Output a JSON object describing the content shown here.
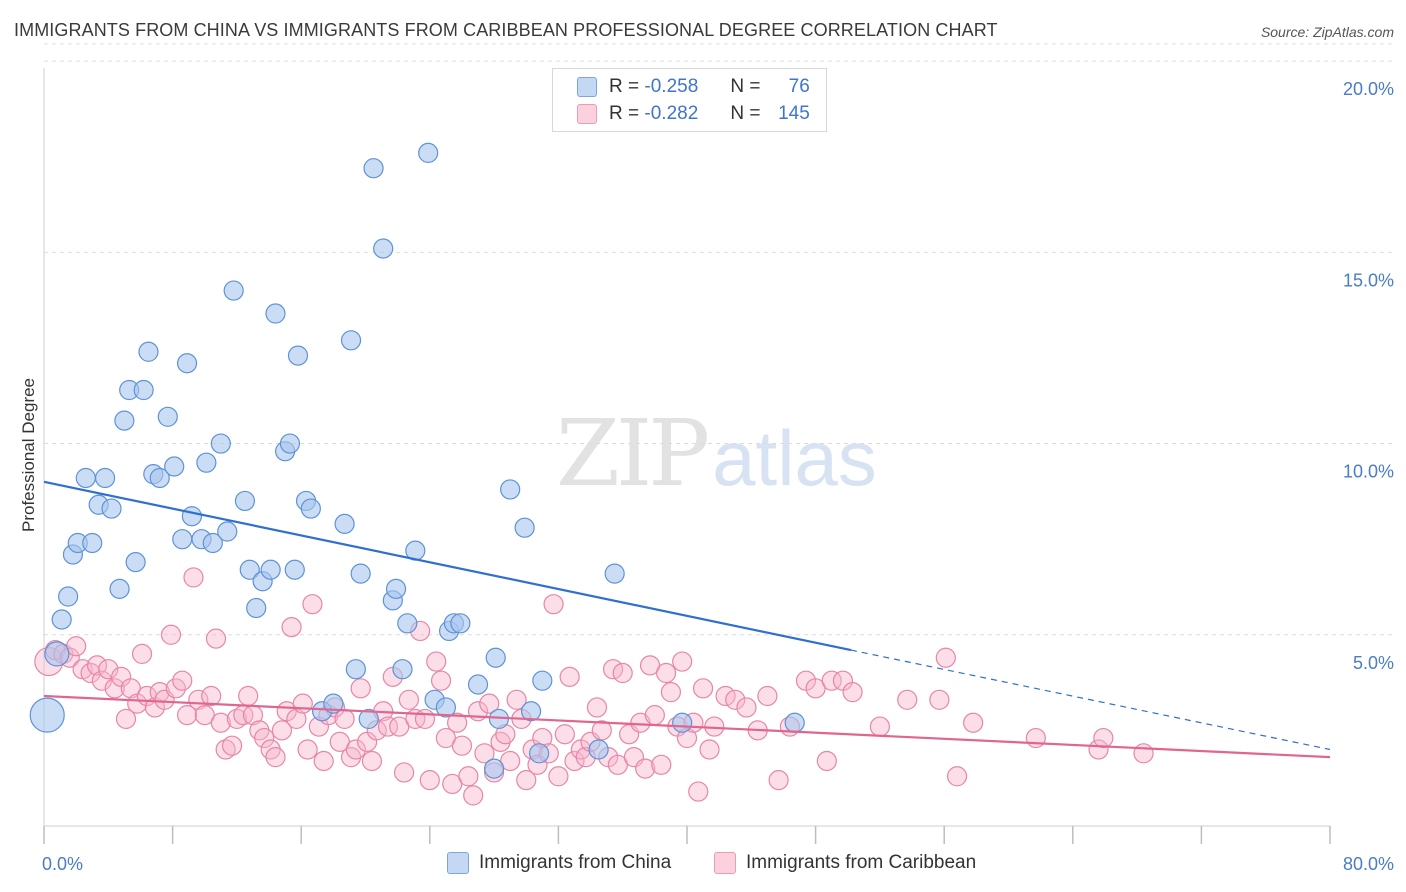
{
  "header": {
    "title": "IMMIGRANTS FROM CHINA VS IMMIGRANTS FROM CARIBBEAN PROFESSIONAL DEGREE CORRELATION CHART",
    "source": "Source: ZipAtlas.com"
  },
  "watermark": {
    "zip": "ZIP",
    "atlas": "atlas"
  },
  "legend": {
    "r_label": "R =",
    "n_label": "N =",
    "rows": [
      {
        "r": "-0.258",
        "n": "76",
        "color": "#a9c6ef"
      },
      {
        "r": "-0.282",
        "n": "145",
        "color": "#f7b6cb"
      }
    ]
  },
  "bottom_legend": [
    {
      "label": "Immigrants from China",
      "color": "#a9c6ef"
    },
    {
      "label": "Immigrants from Caribbean",
      "color": "#f7b6cb"
    }
  ],
  "colors": {
    "china_fill": "#a9c6ef",
    "china_stroke": "#5e93d6",
    "china_line": "#2f6fd0",
    "carib_fill": "#f7b6cb",
    "carib_stroke": "#e886a7",
    "carib_line": "#e0668f",
    "grid": "#dcdcdc",
    "tick_text": "#4a7cc7"
  },
  "chart_data": {
    "type": "scatter",
    "title": "IMMIGRANTS FROM CHINA VS IMMIGRANTS FROM CARIBBEAN PROFESSIONAL DEGREE CORRELATION CHART",
    "xlabel": "",
    "ylabel": "Professional Degree",
    "xlim": [
      0,
      80
    ],
    "ylim": [
      0,
      20.5
    ],
    "x_tick_labels": [
      "0.0%",
      "80.0%"
    ],
    "y_ticks": [
      5,
      10,
      15,
      20
    ],
    "y_tick_labels": [
      "5.0%",
      "10.0%",
      "15.0%",
      "20.0%"
    ],
    "grid": true,
    "legend_position": "top-center",
    "series": [
      {
        "name": "Immigrants from China",
        "r": -0.258,
        "n": 76,
        "trend": {
          "x0": 0,
          "y0": 9.0,
          "x1": 50.2,
          "y1": 4.6,
          "dashed_to_x": 80,
          "dashed_to_y": 2.0
        },
        "points": [
          [
            0.2,
            2.9
          ],
          [
            0.8,
            4.5
          ],
          [
            1.1,
            5.4
          ],
          [
            1.5,
            6.0
          ],
          [
            1.8,
            7.1
          ],
          [
            2.1,
            7.4
          ],
          [
            2.6,
            9.1
          ],
          [
            3.0,
            7.4
          ],
          [
            3.4,
            8.4
          ],
          [
            3.8,
            9.1
          ],
          [
            4.2,
            8.3
          ],
          [
            4.7,
            6.2
          ],
          [
            5.0,
            10.6
          ],
          [
            5.3,
            11.4
          ],
          [
            5.7,
            6.9
          ],
          [
            6.2,
            11.4
          ],
          [
            6.5,
            12.4
          ],
          [
            6.8,
            9.2
          ],
          [
            7.2,
            9.1
          ],
          [
            7.7,
            10.7
          ],
          [
            8.1,
            9.4
          ],
          [
            8.6,
            7.5
          ],
          [
            8.9,
            12.1
          ],
          [
            9.2,
            8.1
          ],
          [
            9.8,
            7.5
          ],
          [
            10.1,
            9.5
          ],
          [
            10.5,
            7.4
          ],
          [
            11.0,
            10.0
          ],
          [
            11.4,
            7.7
          ],
          [
            11.8,
            14.0
          ],
          [
            12.5,
            8.5
          ],
          [
            12.8,
            6.7
          ],
          [
            13.2,
            5.7
          ],
          [
            13.6,
            6.4
          ],
          [
            14.1,
            6.7
          ],
          [
            14.4,
            13.4
          ],
          [
            15.0,
            9.8
          ],
          [
            15.3,
            10.0
          ],
          [
            15.6,
            6.7
          ],
          [
            15.8,
            12.3
          ],
          [
            16.3,
            8.5
          ],
          [
            16.6,
            8.3
          ],
          [
            17.3,
            3.0
          ],
          [
            18.0,
            3.2
          ],
          [
            18.7,
            7.9
          ],
          [
            19.1,
            12.7
          ],
          [
            19.4,
            4.1
          ],
          [
            19.7,
            6.6
          ],
          [
            20.2,
            2.8
          ],
          [
            20.5,
            17.2
          ],
          [
            21.1,
            15.1
          ],
          [
            21.7,
            5.9
          ],
          [
            21.9,
            6.2
          ],
          [
            22.3,
            4.1
          ],
          [
            22.6,
            5.3
          ],
          [
            23.1,
            7.2
          ],
          [
            23.9,
            17.6
          ],
          [
            24.3,
            3.3
          ],
          [
            25.0,
            3.1
          ],
          [
            25.2,
            5.1
          ],
          [
            25.5,
            5.3
          ],
          [
            25.9,
            5.3
          ],
          [
            27.0,
            3.7
          ],
          [
            28.1,
            4.4
          ],
          [
            28.3,
            2.8
          ],
          [
            29.0,
            8.8
          ],
          [
            29.9,
            7.8
          ],
          [
            30.3,
            3.0
          ],
          [
            31.0,
            3.8
          ],
          [
            34.5,
            2.0
          ],
          [
            35.5,
            6.6
          ],
          [
            36.2,
            18.6
          ],
          [
            39.7,
            2.7
          ],
          [
            46.7,
            2.7
          ],
          [
            28.0,
            1.5
          ],
          [
            30.8,
            1.9
          ]
        ]
      },
      {
        "name": "Immigrants from Caribbean",
        "r": -0.282,
        "n": 145,
        "trend": {
          "x0": 0,
          "y0": 3.4,
          "x1": 80,
          "y1": 1.8
        },
        "points": [
          [
            0.3,
            4.3
          ],
          [
            0.7,
            4.6
          ],
          [
            1.2,
            4.5
          ],
          [
            1.6,
            4.4
          ],
          [
            2.0,
            4.7
          ],
          [
            2.4,
            4.1
          ],
          [
            2.9,
            4.0
          ],
          [
            3.3,
            4.2
          ],
          [
            3.6,
            3.8
          ],
          [
            4.0,
            4.1
          ],
          [
            4.4,
            3.6
          ],
          [
            4.8,
            3.9
          ],
          [
            5.1,
            2.8
          ],
          [
            5.4,
            3.6
          ],
          [
            5.8,
            3.2
          ],
          [
            6.1,
            4.5
          ],
          [
            6.4,
            3.4
          ],
          [
            6.9,
            3.1
          ],
          [
            7.2,
            3.5
          ],
          [
            7.5,
            3.3
          ],
          [
            7.9,
            5.0
          ],
          [
            8.2,
            3.6
          ],
          [
            8.6,
            3.8
          ],
          [
            8.9,
            2.9
          ],
          [
            9.3,
            6.5
          ],
          [
            9.6,
            3.3
          ],
          [
            10.0,
            2.9
          ],
          [
            10.4,
            3.4
          ],
          [
            10.7,
            4.9
          ],
          [
            11.0,
            2.7
          ],
          [
            11.3,
            2.0
          ],
          [
            11.7,
            2.1
          ],
          [
            12.0,
            2.8
          ],
          [
            12.4,
            2.9
          ],
          [
            12.7,
            3.4
          ],
          [
            13.0,
            2.9
          ],
          [
            13.4,
            2.5
          ],
          [
            13.7,
            2.3
          ],
          [
            14.1,
            2.0
          ],
          [
            14.4,
            1.8
          ],
          [
            14.8,
            2.5
          ],
          [
            15.1,
            3.0
          ],
          [
            15.4,
            5.2
          ],
          [
            15.7,
            2.8
          ],
          [
            16.1,
            3.2
          ],
          [
            16.4,
            2.0
          ],
          [
            16.7,
            5.8
          ],
          [
            17.1,
            2.6
          ],
          [
            17.4,
            1.7
          ],
          [
            17.7,
            2.9
          ],
          [
            18.1,
            3.1
          ],
          [
            18.4,
            2.2
          ],
          [
            18.7,
            2.8
          ],
          [
            19.1,
            1.8
          ],
          [
            19.4,
            2.0
          ],
          [
            19.7,
            3.6
          ],
          [
            20.1,
            2.2
          ],
          [
            20.4,
            1.7
          ],
          [
            20.7,
            2.5
          ],
          [
            21.1,
            3.0
          ],
          [
            21.4,
            2.6
          ],
          [
            21.7,
            3.9
          ],
          [
            22.1,
            2.6
          ],
          [
            22.4,
            1.4
          ],
          [
            22.7,
            3.3
          ],
          [
            23.1,
            2.8
          ],
          [
            23.4,
            5.1
          ],
          [
            23.7,
            2.8
          ],
          [
            24.0,
            1.2
          ],
          [
            24.4,
            4.3
          ],
          [
            24.7,
            3.8
          ],
          [
            25.0,
            2.3
          ],
          [
            25.4,
            1.1
          ],
          [
            25.7,
            2.7
          ],
          [
            26.0,
            2.1
          ],
          [
            26.4,
            1.3
          ],
          [
            26.7,
            0.8
          ],
          [
            27.0,
            3.0
          ],
          [
            27.4,
            1.9
          ],
          [
            27.7,
            3.2
          ],
          [
            28.0,
            1.4
          ],
          [
            28.4,
            2.2
          ],
          [
            28.7,
            2.4
          ],
          [
            29.0,
            1.7
          ],
          [
            29.4,
            3.3
          ],
          [
            29.7,
            2.8
          ],
          [
            30.0,
            1.2
          ],
          [
            30.4,
            2.0
          ],
          [
            30.7,
            1.6
          ],
          [
            31.0,
            2.3
          ],
          [
            31.4,
            1.9
          ],
          [
            31.7,
            5.8
          ],
          [
            32.0,
            1.3
          ],
          [
            32.4,
            2.4
          ],
          [
            32.7,
            3.9
          ],
          [
            33.0,
            1.7
          ],
          [
            33.4,
            2.0
          ],
          [
            33.7,
            1.8
          ],
          [
            34.0,
            2.2
          ],
          [
            34.4,
            3.1
          ],
          [
            34.7,
            2.5
          ],
          [
            35.1,
            1.8
          ],
          [
            35.4,
            4.1
          ],
          [
            35.7,
            1.6
          ],
          [
            36.0,
            4.0
          ],
          [
            36.4,
            2.4
          ],
          [
            36.7,
            1.8
          ],
          [
            37.1,
            2.7
          ],
          [
            37.4,
            1.5
          ],
          [
            37.7,
            4.2
          ],
          [
            38.0,
            2.9
          ],
          [
            38.4,
            1.6
          ],
          [
            38.7,
            4.0
          ],
          [
            39.0,
            3.5
          ],
          [
            39.4,
            2.6
          ],
          [
            39.7,
            4.3
          ],
          [
            40.0,
            2.3
          ],
          [
            40.4,
            2.7
          ],
          [
            40.7,
            0.9
          ],
          [
            41.0,
            3.6
          ],
          [
            41.4,
            2.0
          ],
          [
            41.7,
            2.6
          ],
          [
            42.4,
            3.4
          ],
          [
            43.0,
            3.3
          ],
          [
            43.7,
            3.1
          ],
          [
            44.4,
            2.5
          ],
          [
            45.0,
            3.4
          ],
          [
            45.7,
            1.2
          ],
          [
            46.4,
            2.6
          ],
          [
            47.4,
            3.8
          ],
          [
            48.0,
            3.6
          ],
          [
            48.7,
            1.7
          ],
          [
            49.0,
            3.8
          ],
          [
            49.7,
            3.8
          ],
          [
            50.3,
            3.5
          ],
          [
            52.0,
            2.6
          ],
          [
            53.7,
            3.3
          ],
          [
            55.7,
            3.3
          ],
          [
            56.1,
            4.4
          ],
          [
            56.8,
            1.3
          ],
          [
            57.8,
            2.7
          ],
          [
            61.7,
            2.3
          ],
          [
            65.6,
            2.0
          ],
          [
            65.9,
            2.3
          ],
          [
            68.4,
            1.9
          ]
        ]
      }
    ]
  }
}
